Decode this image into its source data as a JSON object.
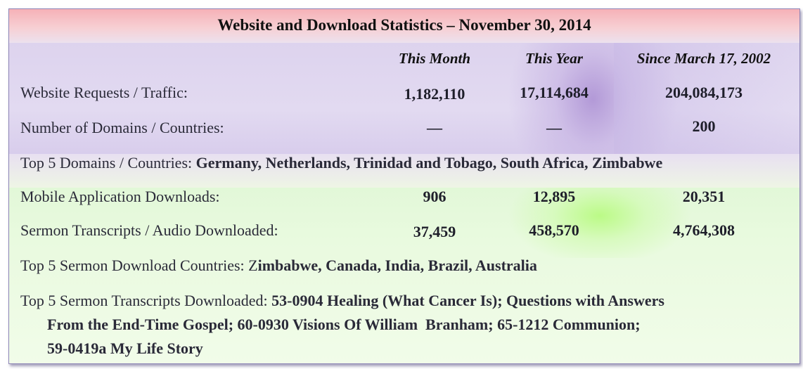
{
  "title": "Website and Download Statistics – November 30, 2014",
  "columns": [
    "This Month",
    "This Year",
    "Since March 17, 2002"
  ],
  "rows": [
    {
      "label": "Website Requests / Traffic:",
      "values": [
        "1,182,110",
        "17,114,684",
        "204,084,173"
      ]
    },
    {
      "label": "Number of Domains / Countries:",
      "values": [
        "—",
        "—",
        "200"
      ]
    }
  ],
  "top5_domains": {
    "label": "Top 5 Domains / Countries: ",
    "value": "Germany, Netherlands, Trinidad and Tobago, South Africa, Zimbabwe"
  },
  "rows2": [
    {
      "label": "Mobile Application Downloads:",
      "values": [
        "906",
        "12,895",
        "20,351"
      ]
    },
    {
      "label": "Sermon Transcripts / Audio Downloaded:",
      "values": [
        "37,459",
        "458,570",
        "4,764,308"
      ]
    }
  ],
  "top5_sermon_countries": {
    "label": "Top 5 Sermon Download Countries: ",
    "value_lead": "Z",
    "value": "imbabwe, Canada, India, Brazil, Australia"
  },
  "top5_transcripts": {
    "label": "Top 5 Sermon Transcripts Downloaded: ",
    "line1": "53-0904 Healing (What Cancer Is); Questions with Answers",
    "line2": "From the End-Time Gospel; 60-0930 Visions Of William  Branham; 65-1212 Communion;",
    "line3": "59-0419a My Life Story"
  }
}
